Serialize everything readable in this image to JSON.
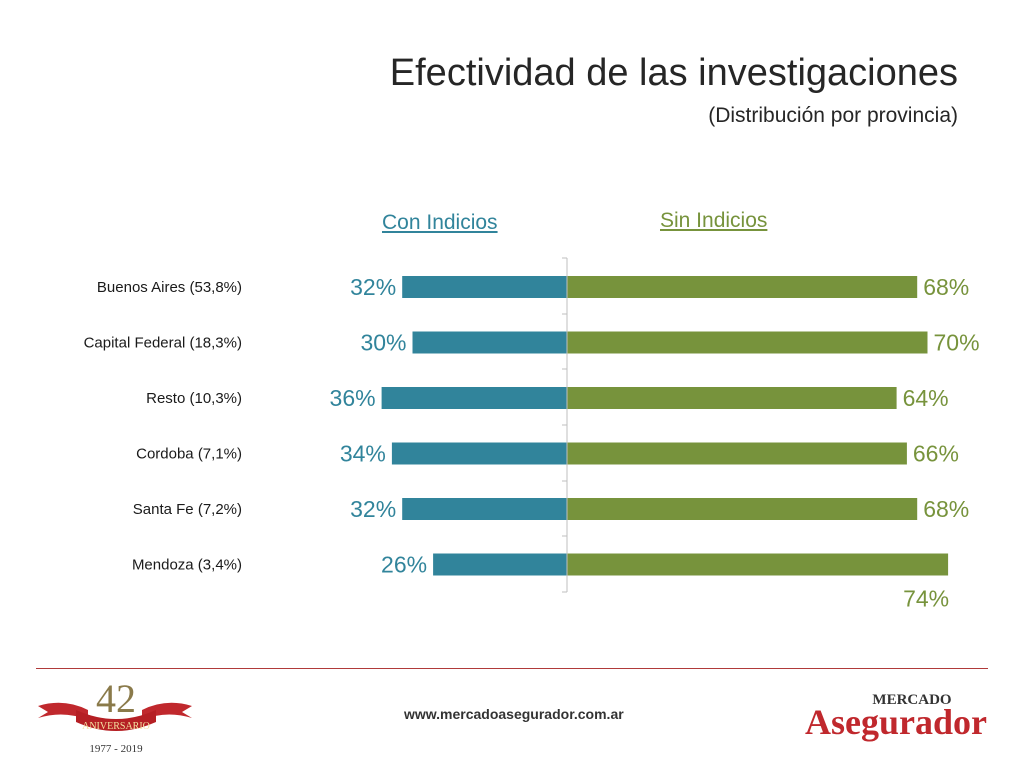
{
  "header": {
    "title": "Efectividad de las investigaciones",
    "subtitle": "(Distribución por provincia)"
  },
  "columns": {
    "left": "Con Indicios",
    "right": "Sin Indicios"
  },
  "colors": {
    "left_bar": "#31849b",
    "right_bar": "#77933c"
  },
  "chart_data": {
    "type": "bar",
    "orientation": "horizontal-diverging",
    "categories": [
      "Buenos Aires (53,8%)",
      "Capital Federal (18,3%)",
      "Resto (10,3%)",
      "Cordoba (7,1%)",
      "Santa Fe (7,2%)",
      "Mendoza (3,4%)"
    ],
    "series": [
      {
        "name": "Con Indicios",
        "values": [
          32,
          30,
          36,
          34,
          32,
          26
        ],
        "labels": [
          "32%",
          "30%",
          "36%",
          "34%",
          "32%",
          "26%"
        ]
      },
      {
        "name": "Sin Indicios",
        "values": [
          68,
          70,
          64,
          66,
          68,
          74
        ],
        "labels": [
          "68%",
          "70%",
          "64%",
          "66%",
          "68%",
          "74%"
        ]
      }
    ],
    "unit": "%",
    "xlim": [
      0,
      100
    ],
    "grid": false
  },
  "footer": {
    "url": "www.mercadoasegurador.com.ar",
    "left_logo": {
      "number": "42",
      "ribbon_text": "ANIVERSARIO",
      "years": "1977 - 2019"
    },
    "right_logo": {
      "top": "MERCADO",
      "bottom": "Asegurador"
    }
  }
}
